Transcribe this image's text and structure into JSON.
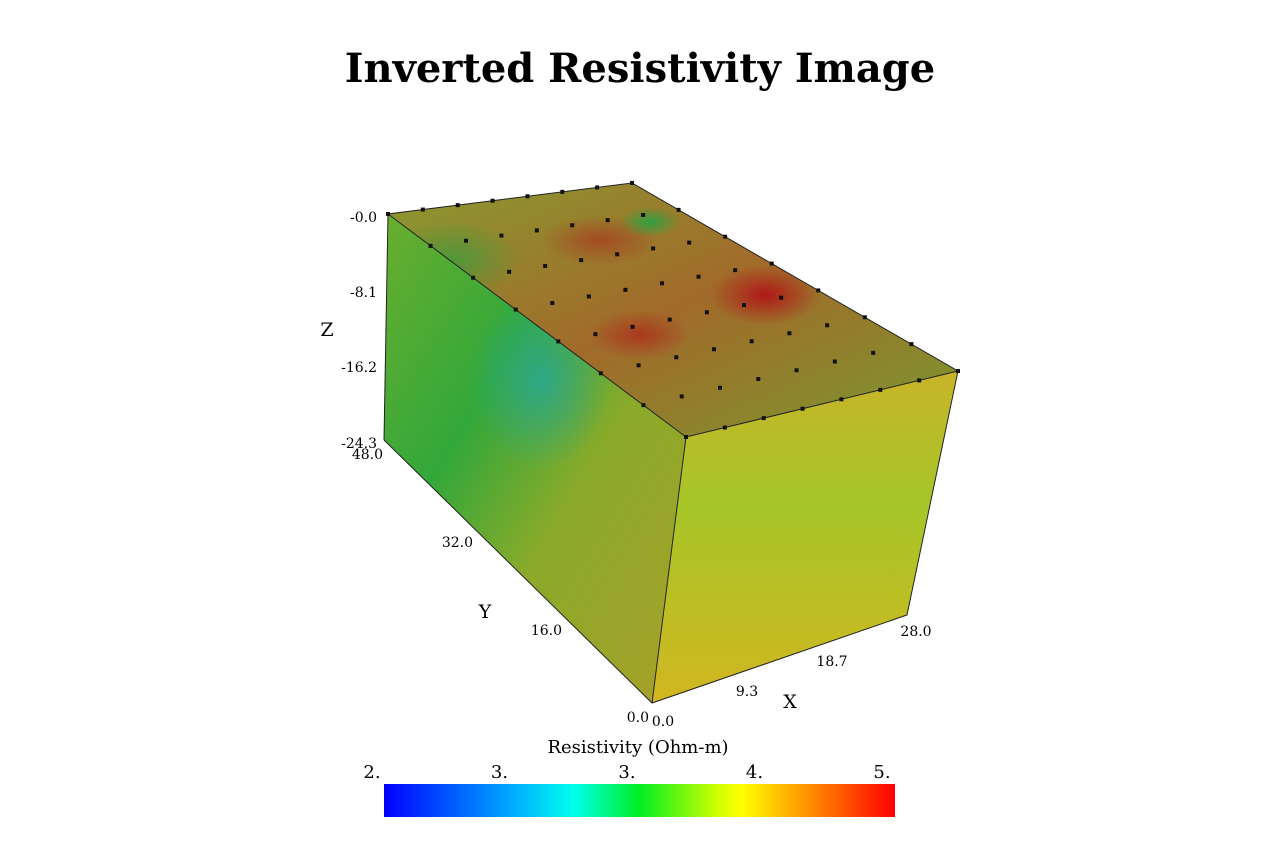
{
  "title": "Inverted Resistivity Image",
  "axes": {
    "z": {
      "label": "Z",
      "ticks": [
        "-0.0",
        "-8.1",
        "-16.2",
        "-24.3"
      ]
    },
    "y": {
      "label": "Y",
      "ticks": [
        "48.0",
        "32.0",
        "16.0",
        "0.0"
      ]
    },
    "x": {
      "label": "X",
      "ticks": [
        "0.0",
        "9.3",
        "18.7",
        "28.0"
      ]
    }
  },
  "colorbar": {
    "label": "Resistivity (Ohm-m)",
    "ticks": [
      "2.",
      "3.",
      "3.",
      "4.",
      "5."
    ]
  }
}
